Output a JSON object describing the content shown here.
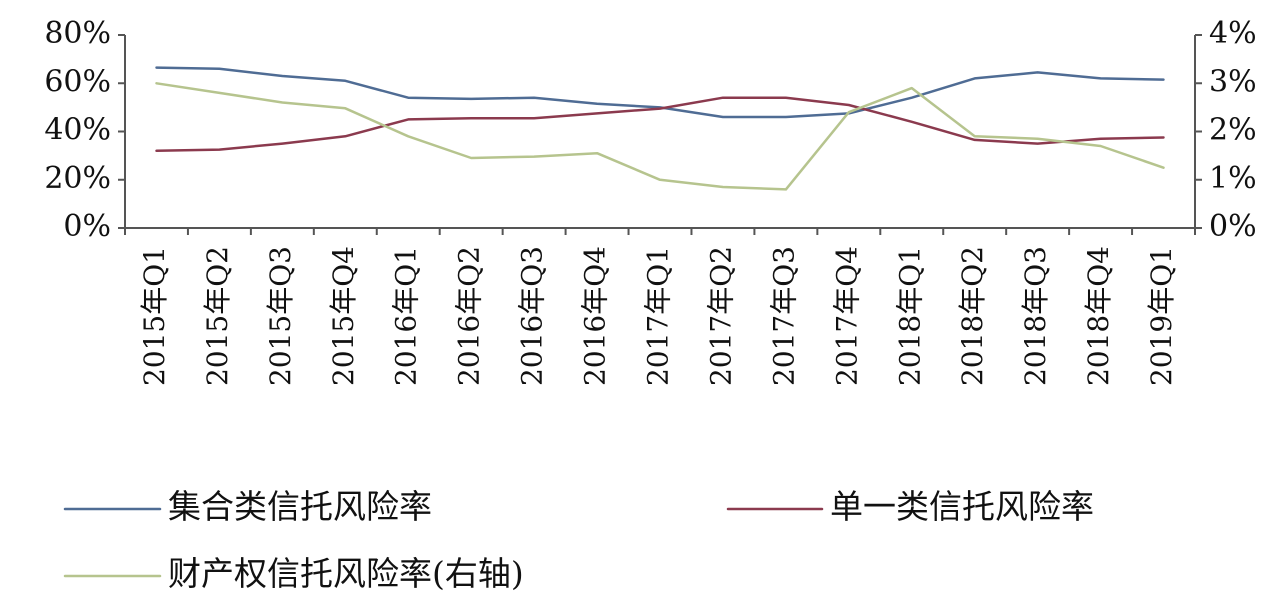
{
  "chart_data": {
    "type": "line",
    "categories": [
      "2015年Q1",
      "2015年Q2",
      "2015年Q3",
      "2015年Q4",
      "2016年Q1",
      "2016年Q2",
      "2016年Q3",
      "2016年Q4",
      "2017年Q1",
      "2017年Q2",
      "2017年Q3",
      "2017年Q4",
      "2018年Q1",
      "2018年Q2",
      "2018年Q3",
      "2018年Q4",
      "2019年Q1"
    ],
    "series": [
      {
        "name": "集合类信托风险率",
        "axis": "left",
        "color": "#4f6c94",
        "values": [
          66.5,
          66,
          63,
          61,
          54,
          53.5,
          54,
          51.5,
          50,
          46,
          46,
          47.5,
          54,
          62,
          64.5,
          62,
          61.5
        ]
      },
      {
        "name": "单一类信托风险率",
        "axis": "left",
        "color": "#8b3a4e",
        "values": [
          32,
          32.5,
          35,
          38,
          45,
          45.5,
          45.5,
          47.5,
          49.5,
          54,
          54,
          51,
          44,
          36.5,
          35,
          37,
          37.5
        ]
      },
      {
        "name": "财产权信托风险率(右轴)",
        "axis": "right",
        "color": "#b6c48e",
        "values": [
          3.0,
          2.8,
          2.6,
          2.48,
          1.9,
          1.45,
          1.48,
          1.55,
          1.0,
          0.85,
          0.8,
          2.4,
          2.9,
          1.9,
          1.85,
          1.7,
          1.25
        ]
      }
    ],
    "y_left": {
      "min": 0,
      "max": 80,
      "ticks": [
        0,
        20,
        40,
        60,
        80
      ],
      "tick_labels": [
        "0%",
        "20%",
        "40%",
        "60%",
        "80%"
      ]
    },
    "y_right": {
      "min": 0,
      "max": 4,
      "ticks": [
        0,
        1,
        2,
        3,
        4
      ],
      "tick_labels": [
        "0%",
        "1%",
        "2%",
        "3%",
        "4%"
      ]
    },
    "grid": false,
    "legend_position": "bottom"
  }
}
